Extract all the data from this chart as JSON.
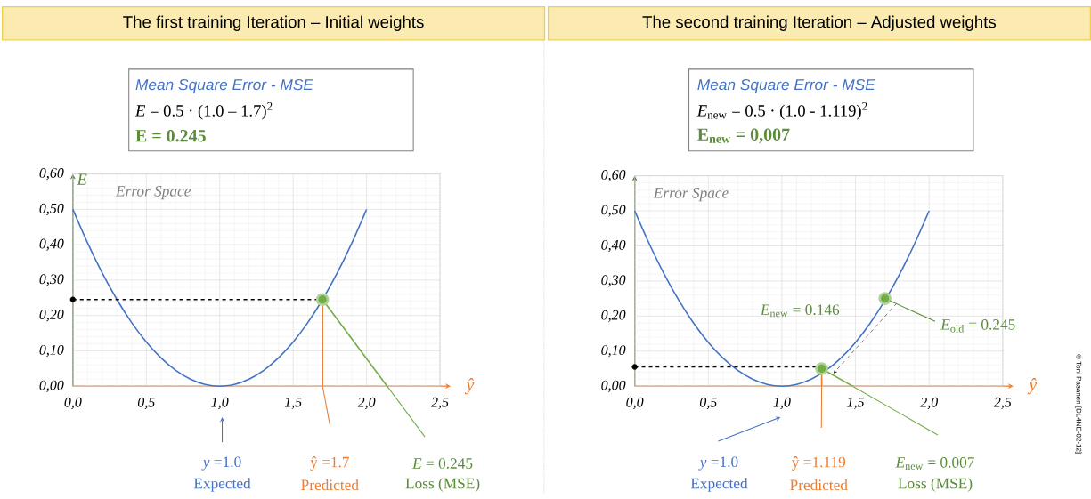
{
  "chart_data": [
    {
      "type": "line",
      "title": "The first training Iteration – Initial weights",
      "xlabel": "ŷ",
      "ylabel": "E",
      "xlim": [
        0,
        2.5
      ],
      "ylim": [
        0,
        0.6
      ],
      "xticks": [
        {
          "value": 0,
          "label": "0,0"
        },
        {
          "value": 0.5,
          "label": "0,5"
        },
        {
          "value": 1,
          "label": "1,0"
        },
        {
          "value": 1.5,
          "label": "1,5"
        },
        {
          "value": 2,
          "label": "2,0"
        },
        {
          "value": 2.5,
          "label": "2,5"
        }
      ],
      "yticks": [
        {
          "value": 0,
          "label": "0,00"
        },
        {
          "value": 0.1,
          "label": "0,10"
        },
        {
          "value": 0.2,
          "label": "0,20"
        },
        {
          "value": 0.3,
          "label": "0,30"
        },
        {
          "value": 0.4,
          "label": "0,40"
        },
        {
          "value": 0.5,
          "label": "0,50"
        },
        {
          "value": 0.6,
          "label": "0,60"
        }
      ],
      "grid": true,
      "series": [
        {
          "color": "#4472c4",
          "marker": "none",
          "x": [
            0,
            0.1,
            0.2,
            0.3,
            0.4,
            0.5,
            0.6,
            0.7,
            0.8,
            0.9,
            1.0,
            1.1,
            1.2,
            1.3,
            1.4,
            1.5,
            1.6,
            1.7,
            1.8,
            1.9,
            2.0
          ],
          "values": [
            0.5,
            0.405,
            0.32,
            0.245,
            0.18,
            0.125,
            0.08,
            0.045,
            0.02,
            0.005,
            0,
            0.005,
            0.02,
            0.045,
            0.08,
            0.125,
            0.18,
            0.245,
            0.32,
            0.405,
            0.5
          ]
        },
        {
          "color": "#000000",
          "line_style": "dashed",
          "marker": "none",
          "x": [
            0,
            1.7
          ],
          "values": [
            0.245,
            0.245
          ]
        },
        {
          "color": "#ed7d31",
          "marker": "none",
          "x": [
            1.7,
            1.7
          ],
          "values": [
            0.245,
            0
          ]
        },
        {
          "color": "#70ad47",
          "marker": "none",
          "x": [
            1.7,
            2.14
          ],
          "values": [
            0.245,
            0
          ]
        },
        {
          "type": "scatter",
          "color": "#000000",
          "marker": "circle",
          "x": [
            0
          ],
          "values": [
            0.245
          ]
        },
        {
          "type": "scatter",
          "color": "#70ad47",
          "marker": "circle",
          "x": [
            1.7
          ],
          "values": [
            0.245
          ]
        }
      ],
      "annotations": [
        "Mean Square Error - MSE",
        "*E* = 0.5 · (1.0 – 1.7)$^{2}$",
        "E = 0.245",
        "Error Space",
        "*y* =1.0",
        "Expected",
        "ŷ =1.7",
        "Predicted",
        "*E* = 0.245",
        "Loss (MSE)"
      ]
    },
    {
      "type": "line",
      "title": "The second training Iteration – Adjusted weights",
      "xlabel": "ŷ",
      "xlim": [
        0,
        2.5
      ],
      "ylim": [
        0,
        0.6
      ],
      "xticks": [
        {
          "value": 0,
          "label": "0,0"
        },
        {
          "value": 0.5,
          "label": "0,5"
        },
        {
          "value": 1,
          "label": "1,0"
        },
        {
          "value": 1.5,
          "label": "1,5"
        },
        {
          "value": 2,
          "label": "2,0"
        },
        {
          "value": 2.5,
          "label": "2,5"
        }
      ],
      "yticks": [
        {
          "value": 0,
          "label": "0,00"
        },
        {
          "value": 0.1,
          "label": "0,10"
        },
        {
          "value": 0.2,
          "label": "0,20"
        },
        {
          "value": 0.3,
          "label": "0,30"
        },
        {
          "value": 0.4,
          "label": "0,40"
        },
        {
          "value": 0.5,
          "label": "0,50"
        },
        {
          "value": 0.6,
          "label": "0,60"
        }
      ],
      "grid": true,
      "series": [
        {
          "color": "#4472c4",
          "marker": "none",
          "x": [
            0,
            0.1,
            0.2,
            0.3,
            0.4,
            0.5,
            0.6,
            0.7,
            0.8,
            0.9,
            1.0,
            1.1,
            1.2,
            1.3,
            1.4,
            1.5,
            1.6,
            1.7,
            1.8,
            1.9,
            2.0
          ],
          "values": [
            0.5,
            0.405,
            0.32,
            0.245,
            0.18,
            0.125,
            0.08,
            0.045,
            0.02,
            0.005,
            0,
            0.005,
            0.02,
            0.045,
            0.08,
            0.125,
            0.18,
            0.245,
            0.32,
            0.405,
            0.5
          ]
        },
        {
          "color": "#000000",
          "line_style": "dashed",
          "marker": "none",
          "x": [
            0,
            1.27
          ],
          "values": [
            0.055,
            0.055
          ]
        },
        {
          "color": "#ed7d31",
          "marker": "none",
          "x": [
            1.27,
            1.27
          ],
          "values": [
            0.05,
            0
          ]
        },
        {
          "color": "#70ad47",
          "marker": "none",
          "x": [
            1.27,
            1.48
          ],
          "values": [
            0.05,
            0
          ]
        },
        {
          "type": "scatter",
          "color": "#000000",
          "marker": "circle",
          "x": [
            0
          ],
          "values": [
            0.055
          ]
        },
        {
          "type": "scatter",
          "color": "#70ad47",
          "marker": "circle",
          "x": [
            1.27,
            1.7
          ],
          "values": [
            0.05,
            0.25
          ]
        }
      ],
      "annotations": [
        "Mean Square Error - MSE",
        "*E*$_{new}$ = 0.5 · (1.0 - 1.119)$^{2}$",
        "E$_{new}$ = 0,007",
        "Error Space",
        "*y* =1.0",
        "Expected",
        "ŷ =1.119",
        "Predicted",
        "*E*$_{new}$ = 0.007",
        "Loss (MSE)",
        "*E*$_{new}$ = 0.146",
        {
          "text": "*E*$_{old}$ = 0.245",
          "x": 1.7,
          "y": 0.25
        },
        "© Toni Pasanen [DL4NE-02-12]"
      ]
    }
  ]
}
